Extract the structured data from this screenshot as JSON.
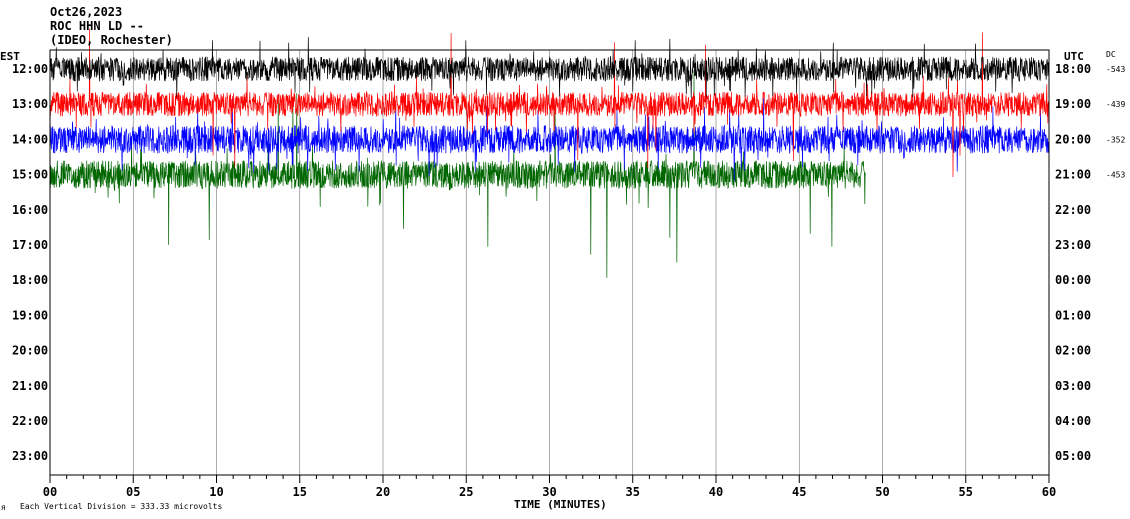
{
  "header": {
    "date": "Oct26,2023",
    "station": "ROC HHN LD --",
    "location": "(IDEO, Rochester)"
  },
  "labels": {
    "left_tz": "EST",
    "right_tz": "UTC",
    "dc": "DC",
    "xlabel": "TIME (MINUTES)",
    "footer": "Each Vertical Division =  333.33 microvolts",
    "footer_mark": "ᴙ"
  },
  "colors": {
    "trace_black": "#000000",
    "trace_red": "#ff0000",
    "trace_blue": "#0000ff",
    "trace_green": "#006600",
    "grid": "#000000",
    "background": "#ffffff"
  },
  "chart_data": {
    "type": "line",
    "description_kind": "helicorder",
    "x_ticks": [
      "00",
      "05",
      "10",
      "15",
      "20",
      "25",
      "30",
      "35",
      "40",
      "45",
      "50",
      "55",
      "60"
    ],
    "xlim": [
      0,
      60
    ],
    "rows_est": [
      "12:00",
      "13:00",
      "14:00",
      "15:00",
      "16:00",
      "17:00",
      "18:00",
      "19:00",
      "20:00",
      "21:00",
      "22:00",
      "23:00"
    ],
    "rows_utc": [
      "18:00",
      "19:00",
      "20:00",
      "21:00",
      "22:00",
      "23:00",
      "00:00",
      "01:00",
      "02:00",
      "03:00",
      "04:00",
      "05:00"
    ],
    "dc_offsets": [
      "-543",
      "-439",
      "-352",
      "-453"
    ],
    "series": [
      {
        "row": "12:00",
        "color": "black",
        "span_minutes": [
          0,
          60
        ],
        "typical_amplitude": 0.35,
        "max_peak": 1.1
      },
      {
        "row": "13:00",
        "color": "red",
        "span_minutes": [
          0,
          60
        ],
        "typical_amplitude": 0.35,
        "max_peak": 2.6
      },
      {
        "row": "14:00",
        "color": "blue",
        "span_minutes": [
          0,
          60
        ],
        "typical_amplitude": 0.4,
        "max_peak": 1.5
      },
      {
        "row": "15:00",
        "color": "green",
        "span_minutes": [
          0,
          49
        ],
        "typical_amplitude": 0.4,
        "max_peak": 3.0
      }
    ]
  }
}
